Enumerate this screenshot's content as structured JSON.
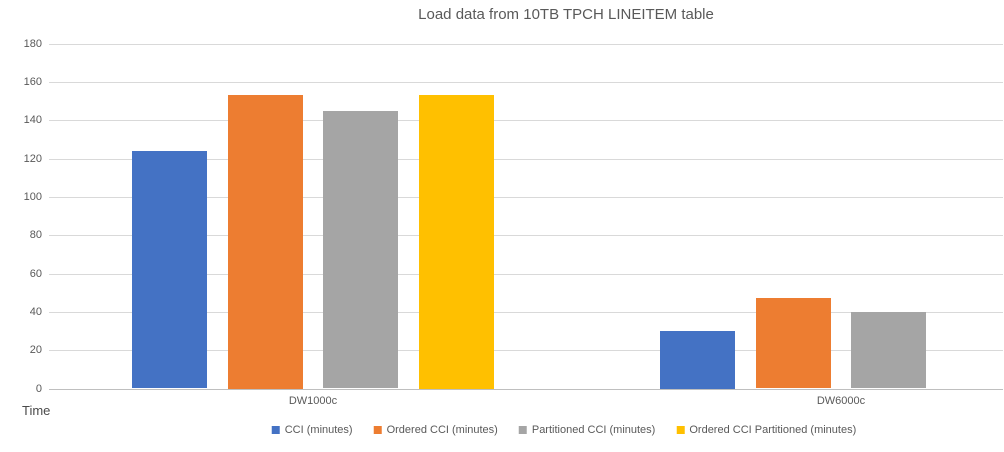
{
  "chart_data": {
    "type": "bar",
    "title": "Load data from 10TB TPCH LINEITEM table",
    "xlabel": "Time",
    "ylabel": "",
    "categories": [
      "DW1000c",
      "DW6000c"
    ],
    "series": [
      {
        "name": "CCI (minutes)",
        "color": "#4472C4",
        "values": [
          124,
          30
        ]
      },
      {
        "name": "Ordered CCI (minutes)",
        "color": "#ED7D31",
        "values": [
          153,
          47
        ]
      },
      {
        "name": "Partitioned CCI (minutes)",
        "color": "#A5A5A5",
        "values": [
          145,
          40
        ]
      },
      {
        "name": "Ordered CCI Partitioned (minutes)",
        "color": "#FFC000",
        "values": [
          153,
          null
        ]
      }
    ],
    "ylim": [
      0,
      180
    ],
    "yticks": [
      0,
      20,
      40,
      60,
      80,
      100,
      120,
      140,
      160,
      180
    ],
    "grid": true,
    "legend_position": "bottom",
    "colors": {
      "gridline": "#D9D9D9",
      "axis_line": "#BFBFBF",
      "text": "#595959"
    }
  }
}
